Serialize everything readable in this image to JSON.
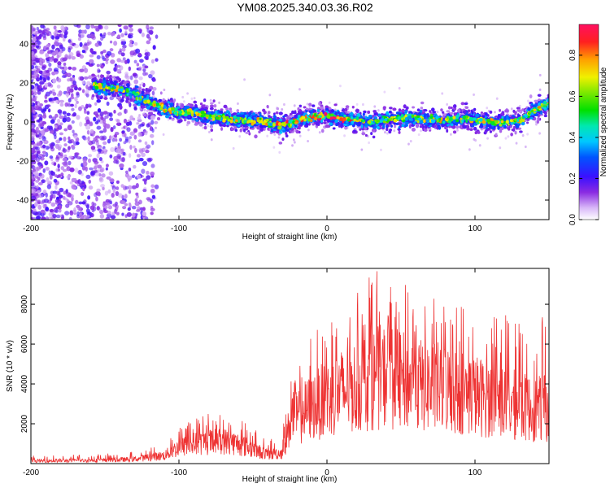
{
  "title": "YM08.2025.340.03.36.R02",
  "chart_data": [
    {
      "type": "heatmap",
      "xlabel": "Height of straight line (km)",
      "ylabel": "Frequency (Hz)",
      "xlim": [
        -200,
        150
      ],
      "ylim": [
        -50,
        50
      ],
      "xticks": [
        -200,
        -100,
        0,
        100
      ],
      "yticks": [
        -40,
        -20,
        0,
        20,
        40
      ],
      "track": {
        "x": [
          -158,
          -150,
          -140,
          -130,
          -120,
          -110,
          -100,
          -90,
          -80,
          -70,
          -60,
          -50,
          -40,
          -30,
          -20,
          -10,
          0,
          10,
          20,
          30,
          40,
          50,
          60,
          70,
          80,
          90,
          100,
          110,
          120,
          130,
          140,
          150
        ],
        "y": [
          19,
          18,
          17,
          14,
          10,
          7,
          5,
          5,
          3,
          2,
          1,
          1,
          0,
          -2,
          1,
          3,
          3,
          2,
          1,
          0,
          1,
          2,
          2,
          1,
          1,
          2,
          1,
          0,
          0,
          1,
          6,
          9
        ]
      },
      "colorbar": {
        "label": "Normalized spectral amplitude",
        "range": [
          0.0,
          0.95
        ],
        "ticks": [
          "0.0",
          "0.2",
          "0.4",
          "0.6",
          "0.8"
        ]
      }
    },
    {
      "type": "line",
      "xlabel": "Height of straight line (km)",
      "ylabel": "SNR (10 * v/v)",
      "xlim": [
        -200,
        150
      ],
      "ylim": [
        0,
        9800
      ],
      "xticks": [
        -200,
        -100,
        0,
        100
      ],
      "yticks": [
        2000,
        4000,
        6000,
        8000
      ],
      "series": [
        {
          "color": "#ee3333",
          "envelope": {
            "x": [
              -200,
              -150,
              -130,
              -110,
              -100,
              -90,
              -80,
              -70,
              -60,
              -50,
              -40,
              -30,
              -25,
              -22,
              -20,
              -10,
              0,
              10,
              20,
              30,
              40,
              50,
              60,
              70,
              80,
              90,
              100,
              110,
              120,
              130,
              140,
              150
            ],
            "mean": [
              150,
              180,
              250,
              450,
              900,
              1100,
              1200,
              1250,
              1100,
              800,
              500,
              600,
              2200,
              3000,
              2600,
              3200,
              3600,
              4000,
              4300,
              4700,
              4900,
              4600,
              4400,
              4300,
              4200,
              4000,
              3800,
              3600,
              3400,
              3200,
              3000,
              3100
            ],
            "peak": [
              400,
              500,
              600,
              1100,
              1900,
              2300,
              2700,
              2600,
              2400,
              1800,
              1200,
              1500,
              5200,
              6000,
              5000,
              6500,
              7200,
              7600,
              8500,
              9800,
              9600,
              9200,
              8800,
              8400,
              8200,
              8100,
              7900,
              7700,
              7500,
              7400,
              7200,
              7800
            ]
          }
        }
      ]
    }
  ]
}
